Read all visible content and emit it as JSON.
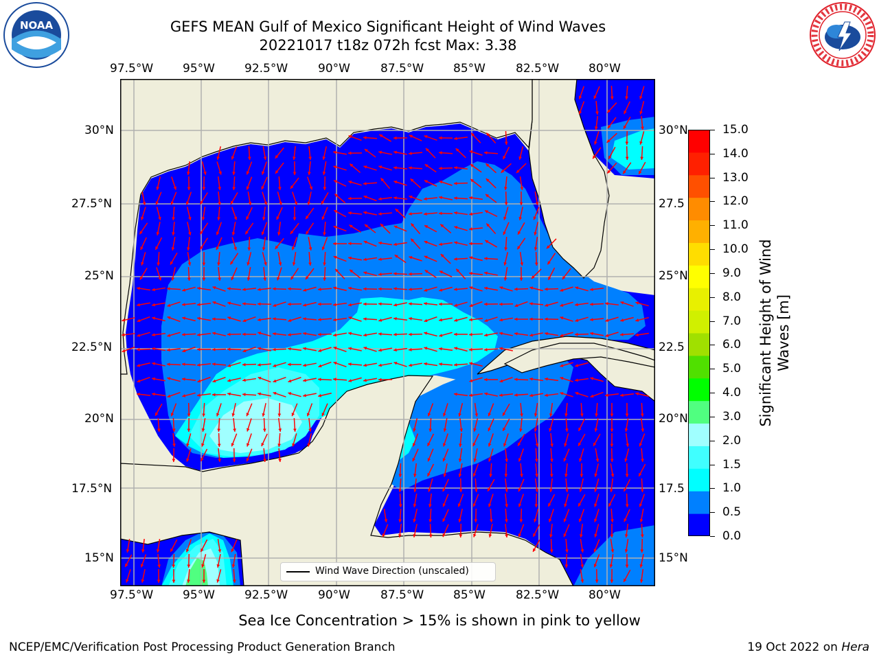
{
  "header": {
    "title_line1": "GEFS MEAN Gulf of Mexico Significant Height of Wind Waves",
    "title_line2": "20221017 t18z 072h fcst   Max: 3.38"
  },
  "logos": {
    "noaa": {
      "text": "NOAA",
      "ring_text": "NATIONAL OCEANIC AND ATMOSPHERIC ADMINISTRATION · U.S. DEPARTMENT OF COMMERCE",
      "color": "#1a4b9c"
    },
    "nws": {
      "ring_text": "NATIONAL WEATHER SERVICE",
      "color": "#e0202a"
    }
  },
  "map": {
    "lon_ticks": [
      "97.5°W",
      "95°W",
      "92.5°W",
      "90°W",
      "87.5°W",
      "85°W",
      "82.5°W",
      "80°W"
    ],
    "lat_ticks_left": [
      "30°N",
      "27.5°N",
      "25°N",
      "22.5°N",
      "20°N",
      "17.5°N",
      "15°N"
    ],
    "lat_ticks_right": [
      "30°N",
      "27.5",
      "25°N",
      "22.5",
      "20°N",
      "17.5",
      "15°N"
    ],
    "land_color": "#efeedb",
    "arrow_color": "#ff0000",
    "legend_label": "Wind Wave Direction (unscaled)"
  },
  "colorbar": {
    "title_line1": "Significant Height of Wind",
    "title_line2": "Waves [m]",
    "labels": [
      "15.0",
      "14.0",
      "13.0",
      "12.0",
      "11.0",
      "10.0",
      "9.0",
      "8.0",
      "7.0",
      "6.0",
      "5.0",
      "4.0",
      "3.0",
      "2.0",
      "1.5",
      "1.0",
      "0.5",
      "0.0"
    ],
    "colors": [
      "#0000ff",
      "#0080ff",
      "#00ffff",
      "#40ffff",
      "#a0ffff",
      "#50ff80",
      "#00ff00",
      "#50e000",
      "#a0e000",
      "#d0f000",
      "#e8f000",
      "#ffff00",
      "#ffdd00",
      "#ffb000",
      "#ff8c00",
      "#ff5000",
      "#ff2000",
      "#ff0000"
    ]
  },
  "footer": {
    "sea_ice_note": "Sea Ice Concentration > 15% is shown in pink to yellow",
    "left": "NCEP/EMC/Verification Post Processing Product Generation Branch",
    "right_prefix": "19 Oct 2022 on ",
    "right_host": "Hera"
  }
}
